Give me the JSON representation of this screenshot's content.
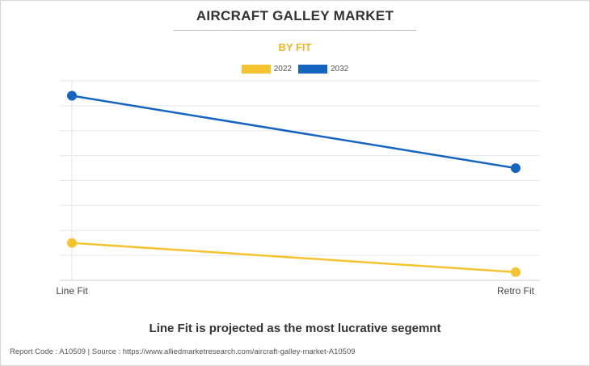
{
  "header": {
    "title": "AIRCRAFT GALLEY MARKET",
    "subtitle": "BY FIT"
  },
  "chart_data": {
    "type": "line",
    "categories": [
      "Line Fit",
      "Retro Fit"
    ],
    "series": [
      {
        "name": "2022",
        "values": [
          1.5,
          0.33
        ],
        "color": "#f4c430"
      },
      {
        "name": "2032",
        "values": [
          7.4,
          4.5
        ],
        "color": "#1565c0"
      }
    ],
    "ylim": [
      0,
      8
    ],
    "grid": true,
    "legend_position": "top-center",
    "xlabel": "",
    "ylabel": ""
  },
  "caption": "Line Fit is projected as the most lucrative segemnt",
  "footer": "Report Code : A10509  |  Source : https://www.alliedmarketresearch.com/aircraft-galley-market-A10509"
}
